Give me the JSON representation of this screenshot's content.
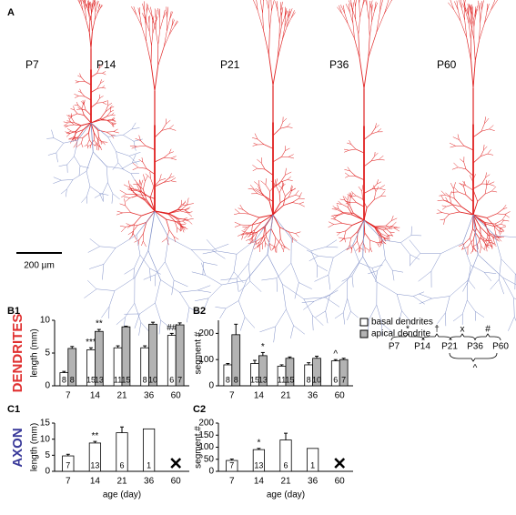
{
  "figure": {
    "panel_A": "A",
    "neuron_labels": [
      "P7",
      "P14",
      "P21",
      "P36",
      "P60"
    ],
    "scale_bar": "200 µm",
    "panel_labels": [
      "B1",
      "B2",
      "C1",
      "C2"
    ],
    "row_labels": [
      "DENDRITES",
      "AXON"
    ]
  },
  "stats_key": {
    "ages": [
      "P7",
      "P14",
      "P21",
      "P36",
      "P60"
    ],
    "symbols_above": [
      "*",
      "†",
      "x",
      "#"
    ],
    "symbol_below": "^"
  },
  "chart_data": [
    {
      "type": "bar",
      "ylabel": "length (mm)",
      "categories": [
        "7",
        "14",
        "21",
        "36",
        "60"
      ],
      "ylim": [
        0,
        10
      ],
      "yticks": [
        0,
        5,
        10
      ],
      "series": [
        {
          "color": "#ffffff",
          "values": [
            2.0,
            5.5,
            5.8,
            5.8,
            7.7
          ],
          "errors": [
            0.2,
            0.3,
            0.3,
            0.3,
            0.3
          ],
          "n": [
            8,
            15,
            11,
            8,
            6
          ],
          "annotations": [
            null,
            "***",
            null,
            null,
            "##"
          ]
        },
        {
          "color": "#b3b3b3",
          "values": [
            5.7,
            8.3,
            9.0,
            9.4,
            9.3
          ],
          "errors": [
            0.3,
            0.3,
            0.1,
            0.3,
            0.3
          ],
          "n": [
            8,
            13,
            15,
            10,
            7
          ],
          "annotations": [
            null,
            "**",
            null,
            null,
            null
          ]
        }
      ]
    },
    {
      "type": "bar",
      "ylabel": "segment #",
      "categories": [
        "7",
        "14",
        "21",
        "36",
        "60"
      ],
      "ylim": [
        0,
        250
      ],
      "yticks": [
        0,
        100,
        200
      ],
      "legend": true,
      "series": [
        {
          "name": "basal dendrites",
          "color": "#ffffff",
          "values": [
            80,
            85,
            75,
            80,
            95
          ],
          "errors": [
            5,
            12,
            5,
            8,
            5
          ],
          "n": [
            8,
            15,
            11,
            8,
            6
          ],
          "annotations": [
            null,
            null,
            null,
            null,
            "^"
          ]
        },
        {
          "name": "apical dendrite",
          "color": "#b3b3b3",
          "values": [
            195,
            115,
            105,
            105,
            100
          ],
          "errors": [
            40,
            12,
            5,
            8,
            5
          ],
          "n": [
            8,
            13,
            15,
            10,
            7
          ],
          "annotations": [
            null,
            "*",
            null,
            null,
            null
          ]
        }
      ]
    },
    {
      "type": "bar",
      "ylabel": "length (mm)",
      "xlabel": "age (day)",
      "categories": [
        "7",
        "14",
        "21",
        "36",
        "60"
      ],
      "ylim": [
        0,
        15
      ],
      "yticks": [
        0,
        5,
        10,
        15
      ],
      "series": [
        {
          "color": "#ffffff",
          "values": [
            4.8,
            8.8,
            12.0,
            13.2,
            null
          ],
          "errors": [
            0.5,
            0.5,
            1.8,
            0,
            null
          ],
          "n": [
            7,
            13,
            6,
            1,
            null
          ],
          "annotations": [
            null,
            "**",
            null,
            null,
            null
          ]
        }
      ]
    },
    {
      "type": "bar",
      "ylabel": "segment #",
      "xlabel": "age (day)",
      "categories": [
        "7",
        "14",
        "21",
        "36",
        "60"
      ],
      "ylim": [
        0,
        200
      ],
      "yticks": [
        0,
        50,
        100,
        150,
        200
      ],
      "series": [
        {
          "color": "#ffffff",
          "values": [
            45,
            90,
            130,
            95,
            null
          ],
          "errors": [
            6,
            5,
            28,
            0,
            null
          ],
          "n": [
            7,
            13,
            6,
            1,
            null
          ],
          "annotations": [
            null,
            "*",
            null,
            null,
            null
          ]
        }
      ]
    }
  ]
}
